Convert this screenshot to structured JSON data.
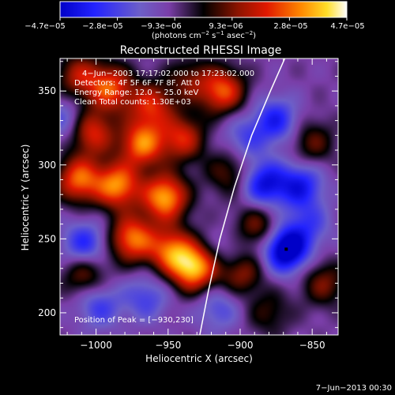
{
  "colorbar": {
    "tick_labels": [
      "−4.7e−05",
      "−2.8e−05",
      "−9.3e−06",
      "9.3e−06",
      "2.8e−05",
      "4.7e−05"
    ],
    "units_text": "(photons cm",
    "units_exp1": "−2",
    "units_mid": " s",
    "units_exp2": "−1",
    "units_end": " asec",
    "units_exp3": "−2",
    "units_close": ")"
  },
  "chart_data": {
    "type": "heatmap",
    "title": "Reconstructed RHESSI Image",
    "xlabel": "Heliocentric X (arcsec)",
    "ylabel": "Heliocentric Y (arcsec)",
    "xlim": [
      -1025,
      -832
    ],
    "ylim": [
      185,
      372
    ],
    "xticks": [
      -1000,
      -950,
      -900,
      -850
    ],
    "yticks": [
      200,
      250,
      300,
      350
    ],
    "xtick_labels": [
      "−1000",
      "−950",
      "−900",
      "−850"
    ],
    "ytick_labels": [
      "200",
      "250",
      "300",
      "350"
    ],
    "colormap_range": [
      -4.7e-05,
      4.7e-05
    ],
    "info_lines": [
      "4−Jun−2003 17:17:02.000 to 17:23:02.000",
      "Detectors: 4F 5F 6F 7F 8F, Att 0",
      "Energy Range: 12.0 − 25.0 keV",
      "Clean    Total counts: 1.30E+03"
    ],
    "peak_label": "Position of Peak = [−930,230]",
    "peak_position": [
      -930,
      230
    ],
    "marked_point": [
      -868,
      243
    ],
    "limb_points": [
      [
        -928,
        185
      ],
      [
        -922,
        215
      ],
      [
        -914,
        250
      ],
      [
        -904,
        285
      ],
      [
        -892,
        320
      ],
      [
        -879,
        350
      ],
      [
        -869,
        372
      ]
    ],
    "sources": [
      {
        "x": -1012,
        "y": 360,
        "value": 2.5e-05
      },
      {
        "x": -990,
        "y": 352,
        "value": 3.5e-05
      },
      {
        "x": -962,
        "y": 340,
        "value": 3e-05
      },
      {
        "x": -912,
        "y": 350,
        "value": 3.6e-05
      },
      {
        "x": -935,
        "y": 357,
        "value": 1.8e-05
      },
      {
        "x": -1003,
        "y": 322,
        "value": 3.2e-05
      },
      {
        "x": -968,
        "y": 314,
        "value": 4e-05
      },
      {
        "x": -940,
        "y": 318,
        "value": 3e-05
      },
      {
        "x": -1012,
        "y": 290,
        "value": 3.8e-05
      },
      {
        "x": -985,
        "y": 286,
        "value": 4.2e-05
      },
      {
        "x": -952,
        "y": 278,
        "value": 4.6e-05
      },
      {
        "x": -975,
        "y": 250,
        "value": 4e-05
      },
      {
        "x": -948,
        "y": 242,
        "value": 3.6e-05
      },
      {
        "x": -932,
        "y": 230,
        "value": 4.7e-05
      },
      {
        "x": -1008,
        "y": 226,
        "value": 2.2e-05
      },
      {
        "x": -900,
        "y": 228,
        "value": 2.6e-05
      },
      {
        "x": -888,
        "y": 258,
        "value": 2.2e-05
      },
      {
        "x": -908,
        "y": 295,
        "value": 1.8e-05
      },
      {
        "x": -850,
        "y": 315,
        "value": 1.8e-05
      },
      {
        "x": -880,
        "y": 200,
        "value": 1.4e-05
      },
      {
        "x": -842,
        "y": 220,
        "value": 2e-05
      },
      {
        "x": -868,
        "y": 243,
        "value": -4.6e-05
      },
      {
        "x": -883,
        "y": 287,
        "value": -3.2e-05
      },
      {
        "x": -858,
        "y": 286,
        "value": -2.8e-05
      },
      {
        "x": -875,
        "y": 330,
        "value": -2.6e-05
      },
      {
        "x": -897,
        "y": 318,
        "value": -1.6e-05
      },
      {
        "x": -1008,
        "y": 246,
        "value": -2.6e-05
      },
      {
        "x": -998,
        "y": 205,
        "value": -2e-05
      },
      {
        "x": -965,
        "y": 210,
        "value": -1.8e-05
      },
      {
        "x": -915,
        "y": 203,
        "value": -1.6e-05
      },
      {
        "x": -852,
        "y": 260,
        "value": -1.6e-05
      },
      {
        "x": -1022,
        "y": 330,
        "value": -1.6e-05
      },
      {
        "x": -905,
        "y": 240,
        "value": -1.2e-05
      }
    ]
  },
  "footer": {
    "date_stamp": "7−Jun−2013 00:30"
  }
}
